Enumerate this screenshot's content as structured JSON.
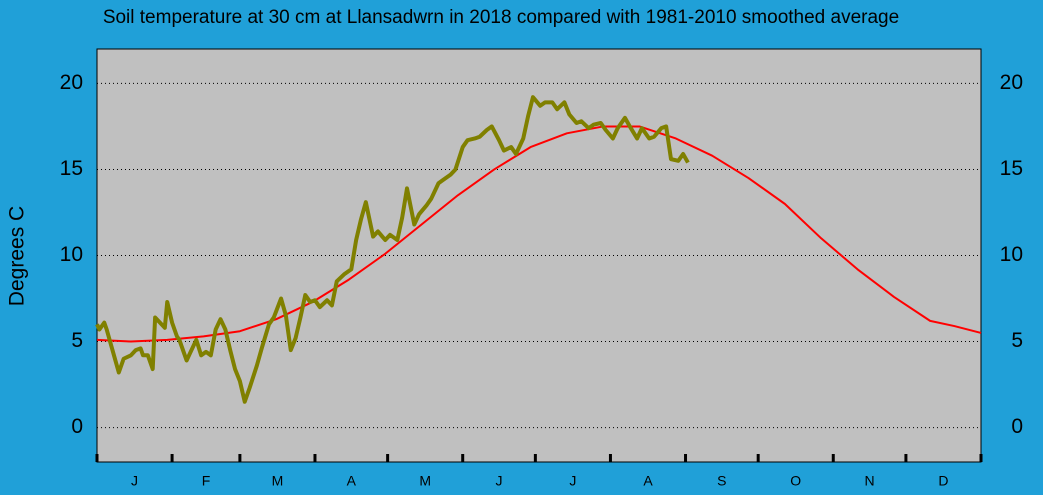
{
  "chart_data": {
    "type": "line",
    "title": "Soil temperature at 30 cm at Llansadwrn in 2018 compared with 1981-2010 smoothed average",
    "y_label": "Degrees  C",
    "categories": [
      "J",
      "F",
      "M",
      "A",
      "M",
      "J",
      "J",
      "A",
      "S",
      "O",
      "N",
      "D"
    ],
    "xlim": [
      1,
      366
    ],
    "xticks": [
      1,
      32,
      60,
      91,
      121,
      152,
      182,
      213,
      244,
      274,
      305,
      335,
      366
    ],
    "ylim": [
      -2,
      22
    ],
    "yticks": [
      0,
      5,
      10,
      15,
      20
    ],
    "grid": true,
    "series": [
      {
        "name": "2018",
        "color": "#808000",
        "x": [
          1,
          2,
          4,
          5,
          8,
          10,
          12,
          15,
          17,
          19,
          20,
          22,
          24,
          25,
          27,
          29,
          30,
          32,
          34,
          35,
          38,
          39,
          42,
          44,
          46,
          48,
          50,
          52,
          54,
          56,
          58,
          60,
          62,
          64,
          67,
          69,
          72,
          74,
          77,
          79,
          81,
          83,
          85,
          87,
          89,
          91,
          93,
          96,
          98,
          100,
          103,
          106,
          108,
          110,
          112,
          115,
          117,
          120,
          122,
          125,
          127,
          129,
          132,
          134,
          137,
          139,
          142,
          144,
          147,
          149,
          152,
          154,
          157,
          159,
          162,
          164,
          167,
          169,
          172,
          174,
          177,
          179,
          181,
          184,
          186,
          189,
          191,
          194,
          196,
          199,
          201,
          204,
          206,
          209,
          211,
          214,
          216,
          219,
          221,
          224,
          226,
          229,
          231,
          234,
          236,
          238,
          241,
          243,
          245
        ],
        "values": [
          6.0,
          5.7,
          6.1,
          5.7,
          4.2,
          3.2,
          4.0,
          4.2,
          4.5,
          4.6,
          4.2,
          4.2,
          3.4,
          6.4,
          6.1,
          5.8,
          7.3,
          6.1,
          5.3,
          5.1,
          3.9,
          4.2,
          5.1,
          4.2,
          4.4,
          4.2,
          5.7,
          6.3,
          5.7,
          4.5,
          3.4,
          2.7,
          1.5,
          2.3,
          3.6,
          4.6,
          6.0,
          6.4,
          7.5,
          6.5,
          4.5,
          5.2,
          6.4,
          7.7,
          7.3,
          7.4,
          7.0,
          7.4,
          7.1,
          8.5,
          8.9,
          9.2,
          10.9,
          12.1,
          13.1,
          11.1,
          11.4,
          10.9,
          11.2,
          10.9,
          12.2,
          13.9,
          11.8,
          12.4,
          12.9,
          13.3,
          14.2,
          14.4,
          14.7,
          15.0,
          16.3,
          16.7,
          16.8,
          16.9,
          17.3,
          17.5,
          16.7,
          16.1,
          16.3,
          15.9,
          16.8,
          18.1,
          19.2,
          18.7,
          18.9,
          18.9,
          18.5,
          18.9,
          18.2,
          17.7,
          17.8,
          17.4,
          17.6,
          17.7,
          17.3,
          16.8,
          17.4,
          18.0,
          17.5,
          16.8,
          17.4,
          16.8,
          16.9,
          17.4,
          17.5,
          15.6,
          15.5,
          15.9,
          15.4
        ]
      },
      {
        "name": "1981-2010 smoothed average",
        "color": "#ff0000",
        "x": [
          1,
          15,
          30,
          45,
          60,
          75,
          90,
          105,
          120,
          135,
          150,
          165,
          180,
          195,
          210,
          225,
          240,
          255,
          270,
          285,
          300,
          315,
          330,
          345,
          355,
          366
        ],
        "values": [
          5.1,
          5.0,
          5.1,
          5.3,
          5.6,
          6.3,
          7.3,
          8.6,
          10.1,
          11.8,
          13.5,
          15.0,
          16.3,
          17.1,
          17.5,
          17.5,
          16.8,
          15.8,
          14.5,
          13.0,
          11.0,
          9.2,
          7.6,
          6.2,
          5.9,
          5.5
        ]
      }
    ]
  }
}
